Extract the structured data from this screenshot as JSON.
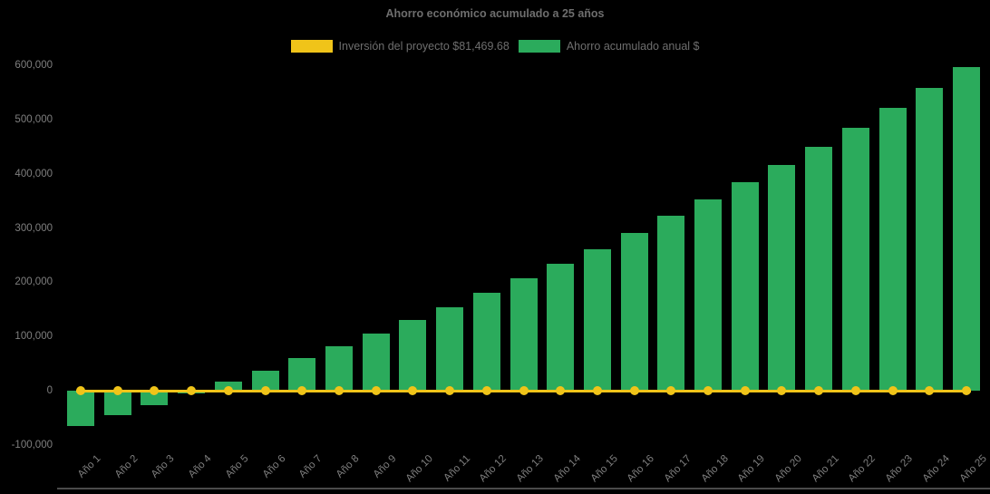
{
  "title": "Ahorro económico acumulado a 25 años",
  "legend": [
    {
      "label": "Inversión del proyecto $81,469.68",
      "color": "#F0C419",
      "icon": "yellow-swatch"
    },
    {
      "label": "Ahorro acumulado anual $",
      "color": "#2BAB5C",
      "icon": "green-swatch"
    }
  ],
  "investment_value": 81469.68,
  "chart_data": {
    "type": "bar",
    "title": "Ahorro económico acumulado a 25 años",
    "xlabel": "",
    "ylabel": "",
    "ylim": [
      -100000,
      600000
    ],
    "ytick_step": 100000,
    "grid": false,
    "legend_position": "top",
    "background": "#000000",
    "categories": [
      "Año 1",
      "Año 2",
      "Año 3",
      "Año 4",
      "Año 5",
      "Año 6",
      "Año 7",
      "Año 8",
      "Año 9",
      "Año 10",
      "Año 11",
      "Año 12",
      "Año 13",
      "Año 14",
      "Año 15",
      "Año 16",
      "Año 17",
      "Año 18",
      "Año 19",
      "Año 20",
      "Año 21",
      "Año 22",
      "Año 23",
      "Año 24",
      "Año 25"
    ],
    "series": [
      {
        "name": "Inversión del proyecto $81,469.68",
        "type": "line",
        "color": "#F0C419",
        "marker": "circle",
        "values": [
          0,
          0,
          0,
          0,
          0,
          0,
          0,
          0,
          0,
          0,
          0,
          0,
          0,
          0,
          0,
          0,
          0,
          0,
          0,
          0,
          0,
          0,
          0,
          0,
          0
        ]
      },
      {
        "name": "Ahorro acumulado anual $",
        "type": "bar",
        "color": "#2BAB5C",
        "values": [
          -65000,
          -45500,
          -27000,
          -5000,
          16500,
          37000,
          60000,
          82000,
          105500,
          130500,
          154000,
          180500,
          207500,
          234000,
          261000,
          291000,
          322500,
          353000,
          384500,
          416000,
          450000,
          485000,
          521500,
          558500,
          597000
        ]
      }
    ]
  }
}
